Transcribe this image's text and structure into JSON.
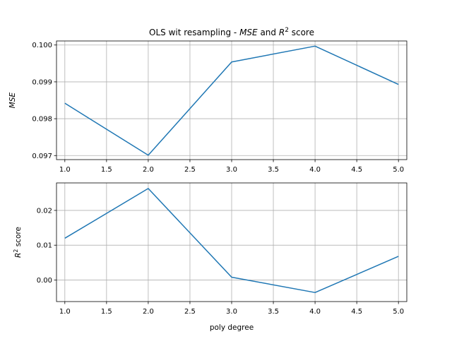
{
  "chart_data": [
    {
      "type": "line",
      "title": "OLS wit resampling - MSE and R² score",
      "title_parts": [
        {
          "text": "OLS wit resampling - ",
          "italic": false,
          "sup": false
        },
        {
          "text": "MSE",
          "italic": true,
          "sup": false
        },
        {
          "text": " and ",
          "italic": false,
          "sup": false
        },
        {
          "text": "R",
          "italic": true,
          "sup": false
        },
        {
          "text": "2",
          "italic": false,
          "sup": true
        },
        {
          "text": " score",
          "italic": false,
          "sup": false
        }
      ],
      "xlabel": "",
      "ylabel": "MSE",
      "ylabel_parts": [
        {
          "text": "MSE",
          "italic": true,
          "sup": false
        }
      ],
      "x": [
        1.0,
        2.0,
        3.0,
        4.0,
        5.0
      ],
      "series": [
        {
          "values": [
            0.09842,
            0.09701,
            0.09954,
            0.09997,
            0.09893
          ],
          "color": "#1f77b4"
        }
      ],
      "xlim": [
        0.9,
        5.1
      ],
      "ylim": [
        0.09689,
        0.10011
      ],
      "xticks": [
        "1.0",
        "1.5",
        "2.0",
        "2.5",
        "3.0",
        "3.5",
        "4.0",
        "4.5",
        "5.0"
      ],
      "xtick_values": [
        1.0,
        1.5,
        2.0,
        2.5,
        3.0,
        3.5,
        4.0,
        4.5,
        5.0
      ],
      "yticks": [
        "0.097",
        "0.098",
        "0.099",
        "0.100"
      ],
      "ytick_values": [
        0.097,
        0.098,
        0.099,
        0.1
      ],
      "grid": true
    },
    {
      "type": "line",
      "title": "",
      "xlabel": "poly degree",
      "ylabel": "R² score",
      "ylabel_parts": [
        {
          "text": "R",
          "italic": true,
          "sup": false
        },
        {
          "text": "2",
          "italic": false,
          "sup": true
        },
        {
          "text": " score",
          "italic": false,
          "sup": false
        }
      ],
      "x": [
        1.0,
        2.0,
        3.0,
        4.0,
        5.0
      ],
      "series": [
        {
          "values": [
            0.012,
            0.0263,
            0.0008,
            -0.0036,
            0.0068
          ],
          "color": "#1f77b4"
        }
      ],
      "xlim": [
        0.9,
        5.1
      ],
      "ylim": [
        -0.0062,
        0.0279
      ],
      "xticks": [
        "1.0",
        "1.5",
        "2.0",
        "2.5",
        "3.0",
        "3.5",
        "4.0",
        "4.5",
        "5.0"
      ],
      "xtick_values": [
        1.0,
        1.5,
        2.0,
        2.5,
        3.0,
        3.5,
        4.0,
        4.5,
        5.0
      ],
      "yticks": [
        "0.00",
        "0.01",
        "0.02"
      ],
      "ytick_values": [
        0.0,
        0.01,
        0.02
      ],
      "grid": true
    }
  ]
}
